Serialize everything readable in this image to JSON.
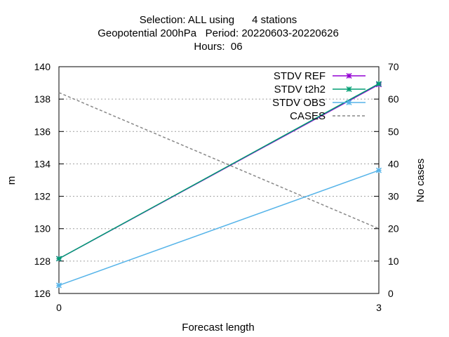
{
  "chart_data": {
    "type": "line",
    "title_lines": [
      "Selection: ALL using      4 stations",
      "Geopotential 200hPa   Period: 20220603-20220626",
      "Hours:  06"
    ],
    "xlabel": "Forecast length",
    "ylabel": "m",
    "y2label": "No cases",
    "x": [
      0,
      3
    ],
    "xlim": [
      0,
      3
    ],
    "ylim": [
      126,
      140
    ],
    "y2lim": [
      0,
      70
    ],
    "x_ticks": [
      "0",
      "3"
    ],
    "y_ticks": [
      "126",
      "128",
      "130",
      "132",
      "134",
      "136",
      "138",
      "140"
    ],
    "y2_ticks": [
      "0",
      "10",
      "20",
      "30",
      "40",
      "50",
      "60",
      "70"
    ],
    "grid": true,
    "legend_position": "top-right",
    "series": [
      {
        "name": "STDV REF",
        "axis": "y",
        "values": [
          128.15,
          138.9
        ],
        "color": "#9400d3",
        "marker": "x",
        "dash": false
      },
      {
        "name": "STDV t2h2",
        "axis": "y",
        "values": [
          128.15,
          138.95
        ],
        "color": "#009e73",
        "marker": "x",
        "dash": false
      },
      {
        "name": "STDV OBS",
        "axis": "y",
        "values": [
          126.5,
          133.6
        ],
        "color": "#56b4e9",
        "marker": "x",
        "dash": false
      },
      {
        "name": "CASES",
        "axis": "y2",
        "values": [
          62,
          20
        ],
        "color": "#888888",
        "marker": "none",
        "dash": true
      }
    ]
  }
}
